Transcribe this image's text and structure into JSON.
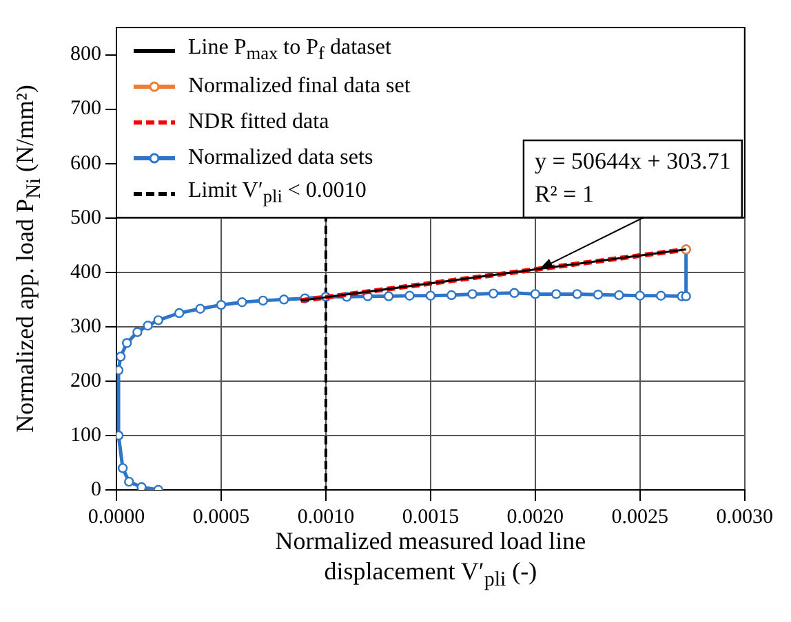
{
  "chart_data": {
    "type": "line",
    "xlabel": "Normalized measured load line displacement V′$_{pli}$ (-)",
    "ylabel": "Normalized app. load P$_{Ni}$ (N/mm²)",
    "xlim": [
      0,
      0.003
    ],
    "xticks": [
      {
        "value": 0,
        "label": "0.0000"
      },
      {
        "value": 0.0005,
        "label": "0.0005"
      },
      {
        "value": 0.001,
        "label": "0.0010"
      },
      {
        "value": 0.0015,
        "label": "0.0015"
      },
      {
        "value": 0.002,
        "label": "0.0020"
      },
      {
        "value": 0.0025,
        "label": "0.0025"
      },
      {
        "value": 0.003,
        "label": "0.0030"
      }
    ],
    "ylim": [
      0,
      850
    ],
    "yticks": [
      0,
      100,
      200,
      300,
      400,
      500,
      600,
      700,
      800
    ],
    "grid": true,
    "legend": "top",
    "series": [
      {
        "name": "Line P$_{max}$ to P$_{f}$ dataset",
        "color": "#000000",
        "marker": "none",
        "line_style": "solid",
        "x": [
          0.00088,
          0.00272
        ],
        "values": [
          348,
          442
        ]
      },
      {
        "name": "Normalized final data set",
        "color": "#ed7d31",
        "marker": "circle",
        "line_style": "solid",
        "x": [
          0.00272
        ],
        "values": [
          442
        ]
      },
      {
        "name": "NDR fitted data",
        "color": "#ff0000",
        "marker": "none",
        "line_style": "dashed",
        "x": [
          0.00088,
          0.00272
        ],
        "values": [
          348,
          442
        ]
      },
      {
        "name": "Normalized data sets",
        "color": "#2e75c8",
        "marker": "circle",
        "line_style": "solid",
        "x": [
          0.0002,
          0.00012,
          6e-05,
          3e-05,
          1e-05,
          1e-05,
          2e-05,
          5e-05,
          0.0001,
          0.00015,
          0.0002,
          0.0003,
          0.0004,
          0.0005,
          0.0006,
          0.0007,
          0.0008,
          0.0009,
          0.001,
          0.0011,
          0.0012,
          0.0013,
          0.0014,
          0.0015,
          0.0016,
          0.0017,
          0.0018,
          0.0019,
          0.002,
          0.0021,
          0.0022,
          0.0023,
          0.0024,
          0.0025,
          0.0026,
          0.0027,
          0.00272,
          0.00272
        ],
        "values": [
          0,
          5,
          15,
          40,
          100,
          220,
          245,
          270,
          290,
          302,
          312,
          325,
          333,
          340,
          345,
          348,
          350,
          352,
          355,
          355,
          356,
          356,
          357,
          357,
          358,
          360,
          361,
          362,
          360,
          360,
          360,
          359,
          358,
          357,
          357,
          356,
          356,
          442
        ]
      }
    ],
    "ref_lines": [
      {
        "axis": "x",
        "value": 0.001,
        "label": "Limit V′$_{pli}$ < 0.0010",
        "color": "#000000",
        "line_style": "dashed"
      }
    ],
    "annotations": [
      "y = 50644x + 303.71",
      "R² = 1"
    ]
  }
}
